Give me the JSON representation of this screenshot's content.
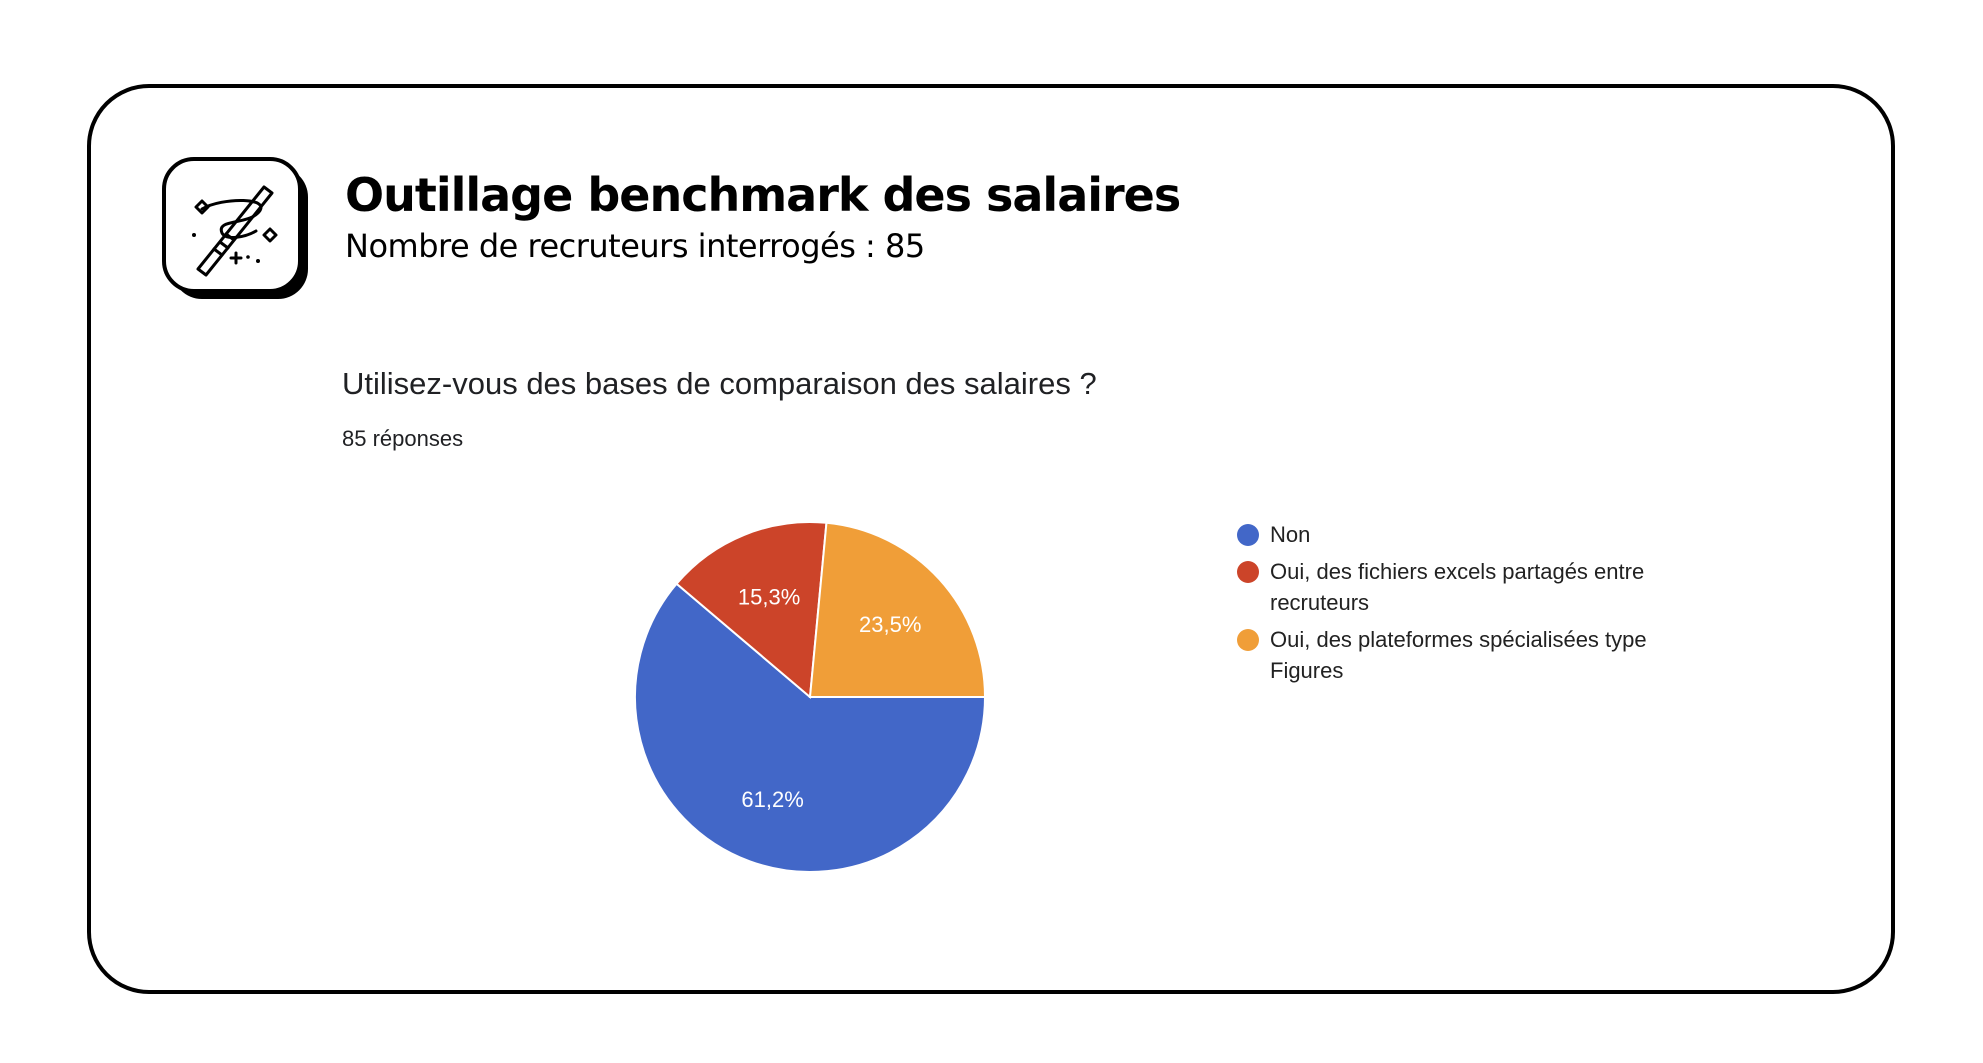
{
  "header": {
    "title": "Outillage benchmark des salaires",
    "subtitle": "Nombre de recruteurs interrogés : 85",
    "icon": "magic-wand-icon"
  },
  "question": {
    "text": "Utilisez-vous des bases de comparaison des salaires ?",
    "responses": "85 réponses"
  },
  "chart_data": {
    "type": "pie",
    "title": "",
    "labels": [
      "Non",
      "Oui, des fichiers excels partagés entre recruteurs",
      "Oui, des plateformes spécialisées type Figures"
    ],
    "values": [
      61.2,
      15.3,
      23.5
    ],
    "value_labels": [
      "61,2%",
      "15,3%",
      "23,5%"
    ],
    "colors": [
      "#4267C8",
      "#CC4429",
      "#F09E38"
    ],
    "legend_position": "right"
  }
}
